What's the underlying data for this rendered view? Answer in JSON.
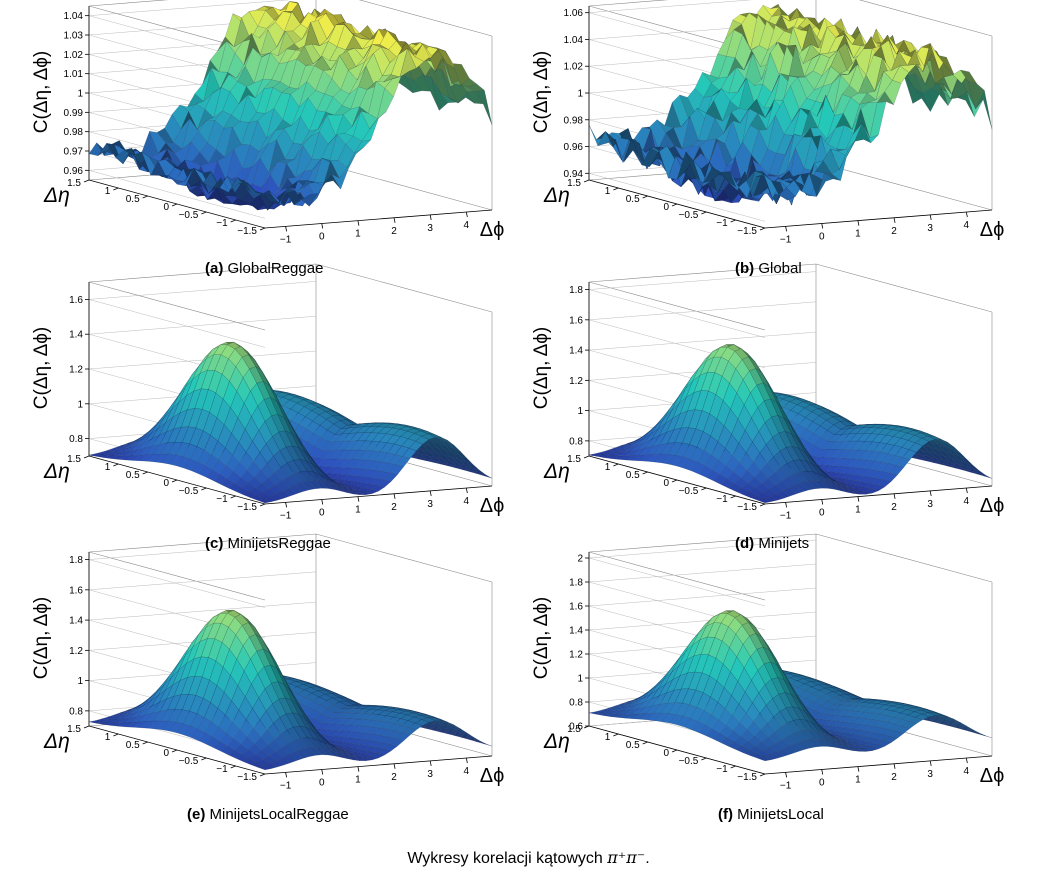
{
  "caption": {
    "text": "Wykresy korelacji kątowych",
    "math": "π⁺π⁻",
    "suffix": "."
  },
  "colors": {
    "low": "#2a3db0",
    "mid": "#21b6a8",
    "high": "#f4dc36",
    "axis": "#000000"
  },
  "chart_data": [
    {
      "type": "surface3d",
      "label": "(a)",
      "name": "GlobalReggae",
      "zlabel": "C(Δη, Δϕ)",
      "xlabel": "Δϕ",
      "ylabel": "Δη",
      "x_ticks": [
        "−1",
        "0",
        "1",
        "2",
        "3",
        "4"
      ],
      "y_ticks": [
        "1.5",
        "1",
        "0.5",
        "0",
        "−0.5",
        "−1",
        "−1.5"
      ],
      "z_ticks": [
        "0.96",
        "0.97",
        "0.98",
        "0.99",
        "1",
        "1.01",
        "1.02",
        "1.03",
        "1.04"
      ],
      "zlim": [
        0.955,
        1.045
      ],
      "xlim": [
        -1.57,
        4.71
      ],
      "ylim": [
        -1.5,
        1.5
      ],
      "shape": {
        "kind": "away",
        "base": 0.972,
        "ridge": 0.068,
        "ridge_center": 3.14,
        "ridge_width": 1.3,
        "noise": 0.006
      }
    },
    {
      "type": "surface3d",
      "label": "(b)",
      "name": "Global",
      "zlabel": "C(Δη, Δϕ)",
      "xlabel": "Δϕ",
      "ylabel": "Δη",
      "x_ticks": [
        "−1",
        "0",
        "1",
        "2",
        "3",
        "4"
      ],
      "y_ticks": [
        "1.5",
        "1",
        "0.5",
        "0",
        "−0.5",
        "−1",
        "−1.5"
      ],
      "z_ticks": [
        "0.94",
        "0.96",
        "0.98",
        "1",
        "1.02",
        "1.04",
        "1.06"
      ],
      "zlim": [
        0.935,
        1.065
      ],
      "xlim": [
        -1.57,
        4.71
      ],
      "ylim": [
        -1.5,
        1.5
      ],
      "shape": {
        "kind": "away",
        "base": 0.965,
        "ridge": 0.085,
        "ridge_center": 3.14,
        "ridge_width": 1.3,
        "noise": 0.012
      }
    },
    {
      "type": "surface3d",
      "label": "(c)",
      "name": "MinijetsReggae",
      "zlabel": "C(Δη, Δϕ)",
      "xlabel": "Δϕ",
      "ylabel": "Δη",
      "x_ticks": [
        "−1",
        "0",
        "1",
        "2",
        "3",
        "4"
      ],
      "y_ticks": [
        "1.5",
        "1",
        "0.5",
        "0",
        "−0.5",
        "−1",
        "−1.5"
      ],
      "z_ticks": [
        "0.8",
        "1",
        "1.2",
        "1.4",
        "1.6"
      ],
      "zlim": [
        0.7,
        1.7
      ],
      "xlim": [
        -1.57,
        4.71
      ],
      "ylim": [
        -1.5,
        1.5
      ],
      "shape": {
        "kind": "minijet",
        "base": 0.7,
        "near_peak": 0.85,
        "near_width_phi": 0.75,
        "near_width_eta": 0.7,
        "away_amp": 0.5,
        "away_width": 0.8,
        "eta_falloff": 0.55
      }
    },
    {
      "type": "surface3d",
      "label": "(d)",
      "name": "Minijets",
      "zlabel": "C(Δη, Δϕ)",
      "xlabel": "Δϕ",
      "ylabel": "Δη",
      "x_ticks": [
        "−1",
        "0",
        "1",
        "2",
        "3",
        "4"
      ],
      "y_ticks": [
        "1.5",
        "1",
        "0.5",
        "0",
        "−0.5",
        "−1",
        "−1.5"
      ],
      "z_ticks": [
        "0.8",
        "1",
        "1.2",
        "1.4",
        "1.6",
        "1.8"
      ],
      "zlim": [
        0.7,
        1.85
      ],
      "xlim": [
        -1.57,
        4.71
      ],
      "ylim": [
        -1.5,
        1.5
      ],
      "shape": {
        "kind": "minijet",
        "base": 0.7,
        "near_peak": 0.95,
        "near_width_phi": 0.75,
        "near_width_eta": 0.7,
        "away_amp": 0.55,
        "away_width": 0.8,
        "eta_falloff": 0.55
      }
    },
    {
      "type": "surface3d",
      "label": "(e)",
      "name": "MinijetsLocalReggae",
      "zlabel": "C(Δη, Δϕ)",
      "xlabel": "Δϕ",
      "ylabel": "Δη",
      "x_ticks": [
        "−1",
        "0",
        "1",
        "2",
        "3",
        "4"
      ],
      "y_ticks": [
        "1.5",
        "1",
        "0.5",
        "0",
        "−0.5",
        "−1",
        "−1.5"
      ],
      "z_ticks": [
        "0.8",
        "1",
        "1.2",
        "1.4",
        "1.6",
        "1.8"
      ],
      "zlim": [
        0.7,
        1.85
      ],
      "xlim": [
        -1.57,
        4.71
      ],
      "ylim": [
        -1.5,
        1.5
      ],
      "shape": {
        "kind": "minijet",
        "base": 0.72,
        "near_peak": 0.95,
        "near_width_phi": 0.75,
        "near_width_eta": 0.7,
        "away_amp": 0.4,
        "away_width": 0.85,
        "eta_falloff": 0.5
      }
    },
    {
      "type": "surface3d",
      "label": "(f)",
      "name": "MinijetsLocal",
      "zlabel": "C(Δη, Δϕ)",
      "xlabel": "Δϕ",
      "ylabel": "Δη",
      "x_ticks": [
        "−1",
        "0",
        "1",
        "2",
        "3",
        "4"
      ],
      "y_ticks": [
        "1.5",
        "1",
        "0.5",
        "0",
        "−0.5",
        "−1",
        "−1.5"
      ],
      "z_ticks": [
        "0.6",
        "0.8",
        "1",
        "1.2",
        "1.4",
        "1.6",
        "1.8",
        "2"
      ],
      "zlim": [
        0.6,
        2.05
      ],
      "xlim": [
        -1.57,
        4.71
      ],
      "ylim": [
        -1.5,
        1.5
      ],
      "shape": {
        "kind": "minijet",
        "base": 0.7,
        "near_peak": 1.1,
        "near_width_phi": 0.75,
        "near_width_eta": 0.7,
        "away_amp": 0.45,
        "away_width": 0.85,
        "eta_falloff": 0.5
      }
    }
  ]
}
